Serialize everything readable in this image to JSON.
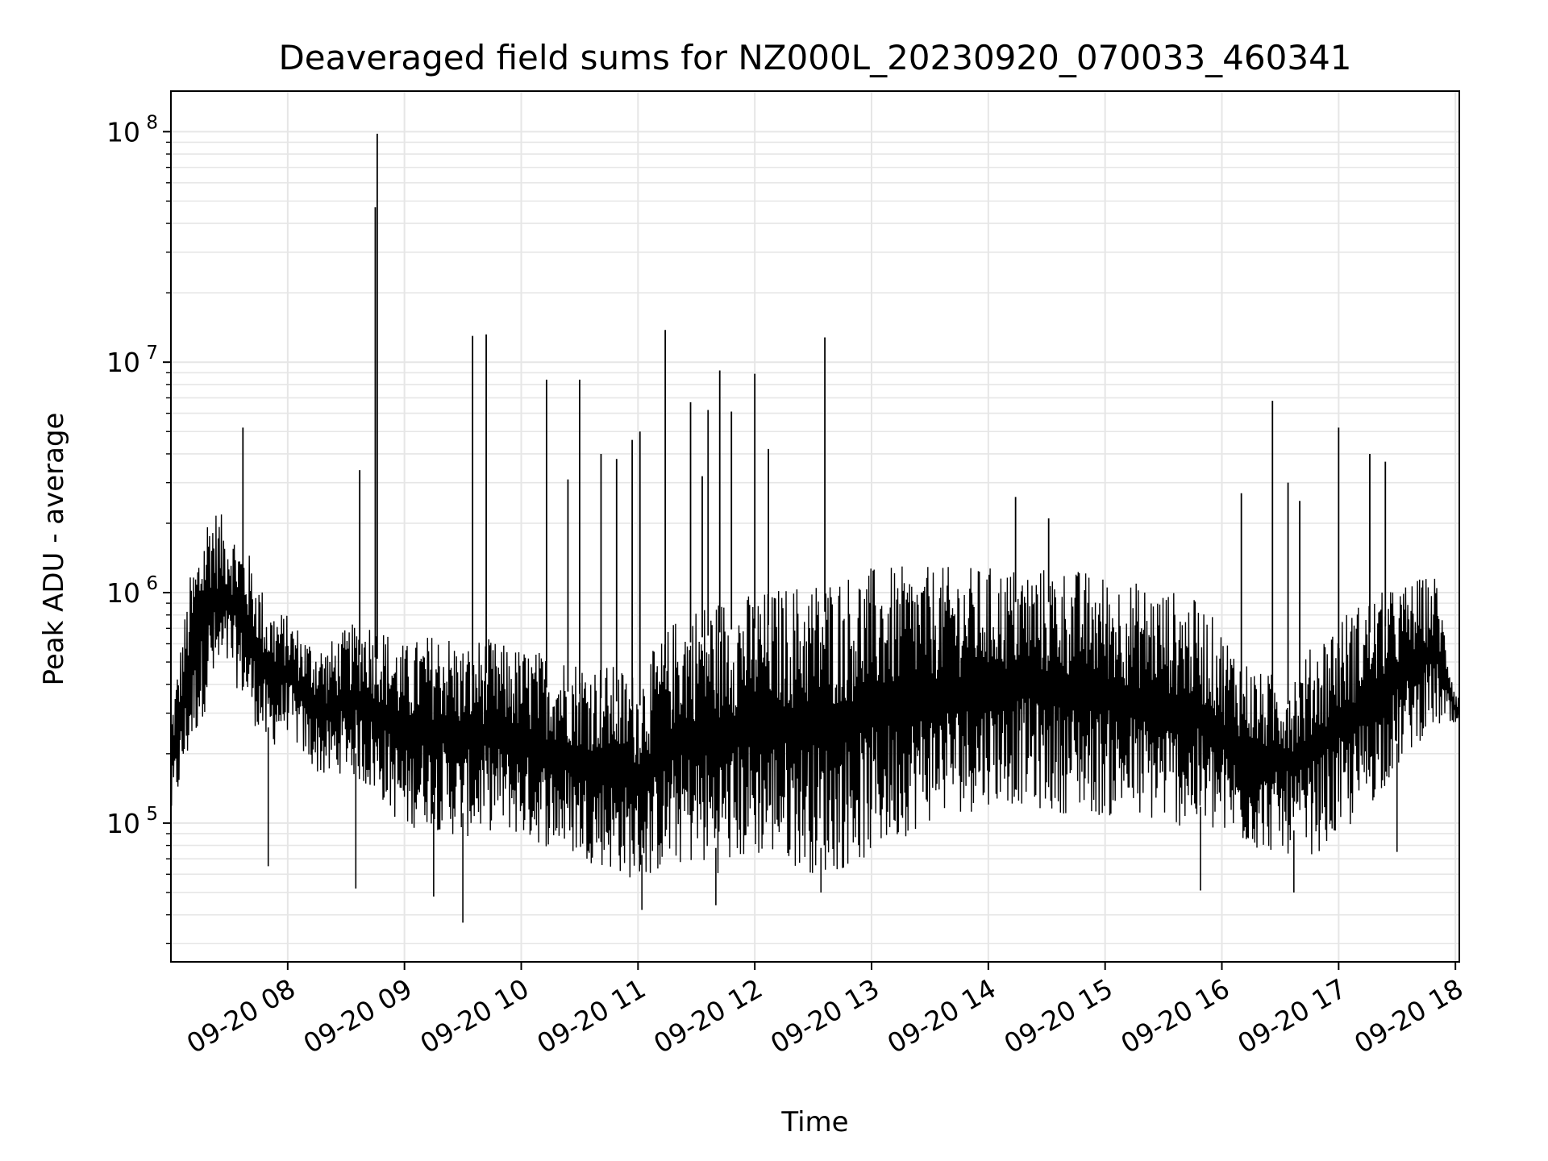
{
  "chart_data": {
    "type": "line",
    "title": "Deaveraged field sums for NZ000L_20230920_070033_460341",
    "xlabel": "Time",
    "ylabel": "Peak ADU - average",
    "x_unit": "datetime (2023-09-20, hours)",
    "xlim": [
      "2023-09-20 07:00",
      "2023-09-20 18:02"
    ],
    "x_ticks": [
      "09-20 08",
      "09-20 09",
      "09-20 10",
      "09-20 11",
      "09-20 12",
      "09-20 13",
      "09-20 14",
      "09-20 15",
      "09-20 16",
      "09-20 17",
      "09-20 18"
    ],
    "yscale": "log",
    "ylim": [
      25000,
      150000000
    ],
    "y_ticks": [
      {
        "base": "10",
        "exp": "5"
      },
      {
        "base": "10",
        "exp": "6"
      },
      {
        "base": "10",
        "exp": "7"
      },
      {
        "base": "10",
        "exp": "8"
      }
    ],
    "grid": true,
    "series": [
      {
        "color": "#000000",
        "x": [
          "2023-09-20 07:00",
          "2023-09-20 07:10",
          "2023-09-20 07:20",
          "2023-09-20 07:30",
          "2023-09-20 07:40",
          "2023-09-20 07:50",
          "2023-09-20 08:00",
          "2023-09-20 08:10",
          "2023-09-20 08:20",
          "2023-09-20 08:30",
          "2023-09-20 08:40",
          "2023-09-20 08:50",
          "2023-09-20 09:00",
          "2023-09-20 09:10",
          "2023-09-20 09:20",
          "2023-09-20 09:30",
          "2023-09-20 09:40",
          "2023-09-20 09:50",
          "2023-09-20 10:00",
          "2023-09-20 10:10",
          "2023-09-20 10:20",
          "2023-09-20 10:30",
          "2023-09-20 10:40",
          "2023-09-20 10:50",
          "2023-09-20 11:00",
          "2023-09-20 11:10",
          "2023-09-20 11:20",
          "2023-09-20 11:30",
          "2023-09-20 11:40",
          "2023-09-20 11:50",
          "2023-09-20 12:00",
          "2023-09-20 12:10",
          "2023-09-20 12:20",
          "2023-09-20 12:30",
          "2023-09-20 12:40",
          "2023-09-20 12:50",
          "2023-09-20 13:00",
          "2023-09-20 13:10",
          "2023-09-20 13:20",
          "2023-09-20 13:30",
          "2023-09-20 13:40",
          "2023-09-20 13:50",
          "2023-09-20 14:00",
          "2023-09-20 14:10",
          "2023-09-20 14:20",
          "2023-09-20 14:30",
          "2023-09-20 14:40",
          "2023-09-20 14:50",
          "2023-09-20 15:00",
          "2023-09-20 15:10",
          "2023-09-20 15:20",
          "2023-09-20 15:30",
          "2023-09-20 15:40",
          "2023-09-20 15:50",
          "2023-09-20 16:00",
          "2023-09-20 16:10",
          "2023-09-20 16:20",
          "2023-09-20 16:30",
          "2023-09-20 16:40",
          "2023-09-20 16:50",
          "2023-09-20 17:00",
          "2023-09-20 17:10",
          "2023-09-20 17:20",
          "2023-09-20 17:30",
          "2023-09-20 17:40",
          "2023-09-20 17:50",
          "2023-09-20 18:00"
        ],
        "low": [
          100000,
          200000,
          350000,
          450000,
          300000,
          200000,
          250000,
          180000,
          150000,
          170000,
          140000,
          120000,
          90000,
          100000,
          90000,
          85000,
          90000,
          95000,
          85000,
          80000,
          75000,
          70000,
          65000,
          60000,
          55000,
          60000,
          65000,
          65000,
          60000,
          65000,
          70000,
          70000,
          65000,
          60000,
          60000,
          65000,
          70000,
          80000,
          90000,
          100000,
          110000,
          110000,
          120000,
          120000,
          120000,
          110000,
          110000,
          110000,
          105000,
          105000,
          100000,
          100000,
          95000,
          90000,
          85000,
          80000,
          75000,
          75000,
          70000,
          75000,
          85000,
          100000,
          130000,
          170000,
          220000,
          260000,
          250000
        ],
        "high": [
          300000,
          1200000,
          2500000,
          2000000,
          1500000,
          900000,
          800000,
          650000,
          600000,
          700000,
          800000,
          700000,
          600000,
          650000,
          700000,
          600000,
          650000,
          600000,
          580000,
          560000,
          540000,
          520000,
          500000,
          480000,
          450000,
          600000,
          800000,
          900000,
          950000,
          1000000,
          1000000,
          1050000,
          1100000,
          1150000,
          1200000,
          1250000,
          1300000,
          1300000,
          1300000,
          1300000,
          1300000,
          1300000,
          1300000,
          1300000,
          1300000,
          1300000,
          1300000,
          1250000,
          1200000,
          1150000,
          1100000,
          1050000,
          1000000,
          900000,
          700000,
          550000,
          450000,
          450000,
          500000,
          650000,
          800000,
          900000,
          1000000,
          1050000,
          1150000,
          1200000,
          380000
        ],
        "spikes": [
          {
            "x": "2023-09-20 07:37",
            "y": 5200000
          },
          {
            "x": "2023-09-20 08:37",
            "y": 3400000
          },
          {
            "x": "2023-09-20 08:45",
            "y": 47000000
          },
          {
            "x": "2023-09-20 08:46",
            "y": 98000000
          },
          {
            "x": "2023-09-20 09:35",
            "y": 13000000
          },
          {
            "x": "2023-09-20 09:42",
            "y": 13200000
          },
          {
            "x": "2023-09-20 10:13",
            "y": 8400000
          },
          {
            "x": "2023-09-20 10:24",
            "y": 3100000
          },
          {
            "x": "2023-09-20 10:30",
            "y": 8400000
          },
          {
            "x": "2023-09-20 10:41",
            "y": 4000000
          },
          {
            "x": "2023-09-20 10:49",
            "y": 3800000
          },
          {
            "x": "2023-09-20 10:57",
            "y": 4600000
          },
          {
            "x": "2023-09-20 11:01",
            "y": 5000000
          },
          {
            "x": "2023-09-20 11:14",
            "y": 13800000
          },
          {
            "x": "2023-09-20 11:27",
            "y": 6700000
          },
          {
            "x": "2023-09-20 11:33",
            "y": 3200000
          },
          {
            "x": "2023-09-20 11:36",
            "y": 6200000
          },
          {
            "x": "2023-09-20 11:42",
            "y": 9200000
          },
          {
            "x": "2023-09-20 11:48",
            "y": 6100000
          },
          {
            "x": "2023-09-20 12:00",
            "y": 8900000
          },
          {
            "x": "2023-09-20 12:07",
            "y": 4200000
          },
          {
            "x": "2023-09-20 12:36",
            "y": 12800000
          },
          {
            "x": "2023-09-20 14:14",
            "y": 2600000
          },
          {
            "x": "2023-09-20 14:31",
            "y": 2100000
          },
          {
            "x": "2023-09-20 16:10",
            "y": 2700000
          },
          {
            "x": "2023-09-20 16:26",
            "y": 6800000
          },
          {
            "x": "2023-09-20 16:34",
            "y": 3000000
          },
          {
            "x": "2023-09-20 16:40",
            "y": 2500000
          },
          {
            "x": "2023-09-20 17:00",
            "y": 5200000
          },
          {
            "x": "2023-09-20 17:16",
            "y": 4000000
          },
          {
            "x": "2023-09-20 17:24",
            "y": 3700000
          }
        ],
        "dips": [
          {
            "x": "2023-09-20 07:50",
            "y": 65000
          },
          {
            "x": "2023-09-20 08:35",
            "y": 52000
          },
          {
            "x": "2023-09-20 09:15",
            "y": 48000
          },
          {
            "x": "2023-09-20 09:30",
            "y": 37000
          },
          {
            "x": "2023-09-20 11:02",
            "y": 42000
          },
          {
            "x": "2023-09-20 11:40",
            "y": 44000
          },
          {
            "x": "2023-09-20 12:34",
            "y": 50000
          },
          {
            "x": "2023-09-20 15:49",
            "y": 51000
          },
          {
            "x": "2023-09-20 16:37",
            "y": 50000
          },
          {
            "x": "2023-09-20 17:30",
            "y": 75000
          }
        ]
      }
    ]
  }
}
